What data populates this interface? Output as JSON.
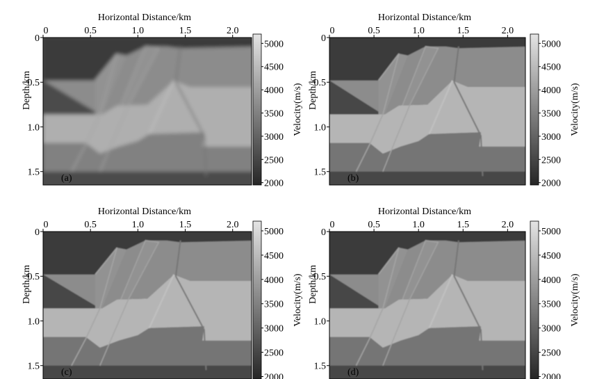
{
  "shared_axes": {
    "xlabel": "Horizontal Distance/km",
    "ylabel": "Depth/km",
    "x_ticks": [
      0,
      0.5,
      1.0,
      1.5,
      2.0
    ],
    "x_tick_labels": [
      "0",
      "0.5",
      "1.0",
      "1.5",
      "2.0"
    ],
    "y_ticks": [
      0,
      0.5,
      1.0,
      1.5
    ],
    "y_tick_labels": [
      "0",
      "0.5",
      "1.0",
      "1.5"
    ],
    "xlim": [
      0,
      2.2
    ],
    "ylim": [
      0,
      1.65
    ],
    "colorbar_label": "Velocity(m/s)",
    "colorbar_ticks": [
      5000,
      4500,
      4000,
      3500,
      3000,
      2500,
      2000
    ],
    "colorbar_tick_labels": [
      "5000",
      "4500",
      "4000",
      "3500",
      "3000",
      "2500",
      "2000"
    ],
    "colorbar_range": [
      1950,
      5200
    ],
    "colormap": "gray",
    "colormap_dark_color": "#262626",
    "colormap_light_color": "#e4e4e4"
  },
  "chart_data": [
    {
      "type": "heatmap",
      "panel_label": "(a)",
      "xlabel": "Horizontal Distance/km",
      "ylabel": "Depth/km",
      "xlim": [
        0,
        2.2
      ],
      "ylim": [
        0,
        1.65
      ],
      "colorbar_label": "Velocity(m/s)",
      "colorbar_range": [
        1950,
        5200
      ],
      "layers_velocity_mps": {
        "top_layer": 2300,
        "upper_layer": 3700,
        "fault_blocks": 3800,
        "middle_layer": 4300,
        "deep_layer": 3500,
        "basement": 2600
      },
      "style": "smooth"
    },
    {
      "type": "heatmap",
      "panel_label": "(b)",
      "xlabel": "Horizontal Distance/km",
      "ylabel": "Depth/km",
      "xlim": [
        0,
        2.2
      ],
      "ylim": [
        0,
        1.65
      ],
      "colorbar_label": "Velocity(m/s)",
      "colorbar_range": [
        1950,
        5200
      ],
      "layers_velocity_mps": {
        "top_layer": 2300,
        "upper_layer": 3700,
        "fault_blocks": 3800,
        "middle_layer": 4400,
        "deep_layer": 3300,
        "basement": 2500
      },
      "style": "sharp"
    },
    {
      "type": "heatmap",
      "panel_label": "(c)",
      "xlabel": "Horizontal Distance/km",
      "ylabel": "Depth/km",
      "xlim": [
        0,
        2.2
      ],
      "ylim": [
        0,
        1.65
      ],
      "colorbar_label": "Velocity(m/s)",
      "colorbar_range": [
        1950,
        5200
      ],
      "layers_velocity_mps": {
        "top_layer": 2300,
        "upper_layer": 3700,
        "fault_blocks": 3800,
        "middle_layer": 4400,
        "deep_layer": 3300,
        "basement": 2500
      },
      "style": "sharp"
    },
    {
      "type": "heatmap",
      "panel_label": "(d)",
      "xlabel": "Horizontal Distance/km",
      "ylabel": "Depth/km",
      "xlim": [
        0,
        2.2
      ],
      "ylim": [
        0,
        1.65
      ],
      "colorbar_label": "Velocity(m/s)",
      "colorbar_range": [
        1950,
        5200
      ],
      "layers_velocity_mps": {
        "top_layer": 2300,
        "upper_layer": 3700,
        "fault_blocks": 3800,
        "middle_layer": 4400,
        "deep_layer": 3300,
        "basement": 2500
      },
      "style": "sharp"
    }
  ]
}
